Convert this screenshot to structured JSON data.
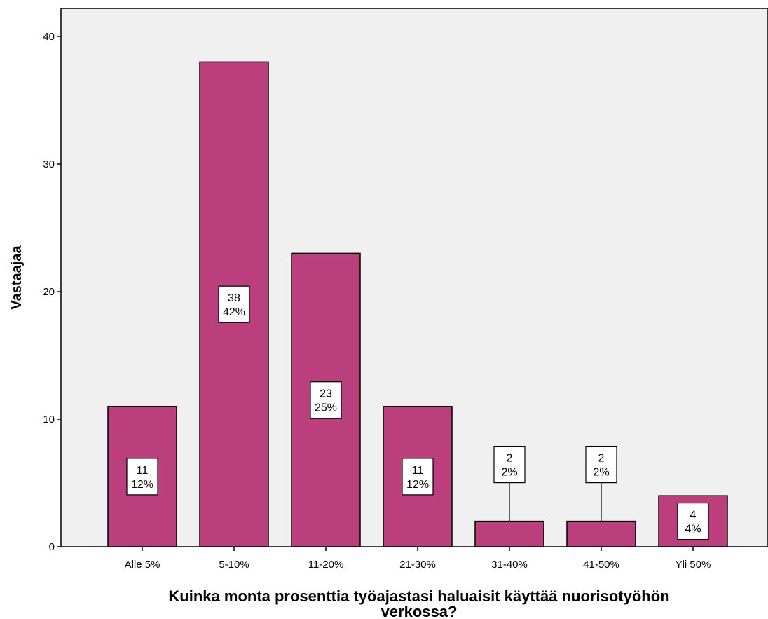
{
  "chart_data": {
    "type": "bar",
    "categories": [
      "Alle 5%",
      "5-10%",
      "11-20%",
      "21-30%",
      "31-40%",
      "41-50%",
      "Yli 50%"
    ],
    "values": [
      11,
      38,
      23,
      11,
      2,
      2,
      4
    ],
    "percent_labels": [
      "12%",
      "42%",
      "25%",
      "12%",
      "2%",
      "2%",
      "4%"
    ],
    "xlabel": "Kuinka monta prosenttia työajastasi haluaisit käyttää nuorisotyöhön verkossa?",
    "xlabel_lines": [
      "Kuinka monta prosenttia työajastasi haluaisit käyttää nuorisotyöhön",
      "verkossa?"
    ],
    "ylabel": "Vastaajaa",
    "ylim": [
      0,
      42
    ],
    "yticks": [
      0,
      10,
      20,
      30,
      40
    ],
    "grid": false,
    "colors": {
      "bar": "#bb3f7c",
      "plot_background": "#f0f0f0",
      "bar_outline": "#000000"
    }
  }
}
